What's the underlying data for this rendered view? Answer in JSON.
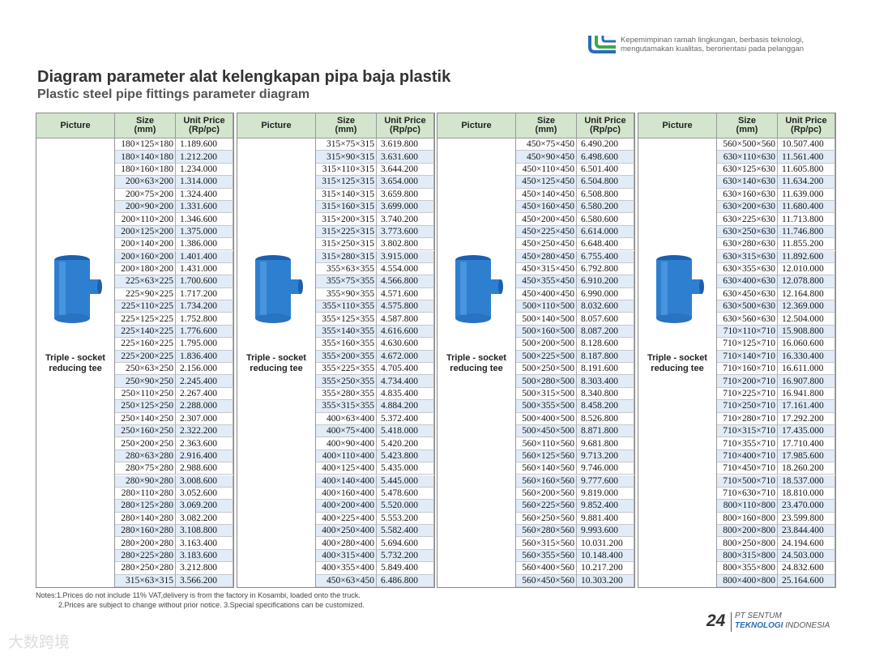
{
  "header": {
    "tagline": [
      "Kepemimpinan ramah lingkungan, berbasis teknologi,",
      "mengutamakan kualitas, berorientasi pada pelanggan"
    ],
    "title": "Diagram parameter alat kelengkapan pipa baja plastik",
    "subtitle": "Plastic steel pipe fittings parameter diagram"
  },
  "tables": [
    {
      "columns": [
        "Picture",
        "Size\n(mm)",
        "Unit Price\n(Rp/pc)"
      ],
      "picture_label": "Triple - socket\nreducing tee",
      "rows": [
        [
          "180×125×180",
          "1.189.600"
        ],
        [
          "180×140×180",
          "1.212.200"
        ],
        [
          "180×160×180",
          "1.234.000"
        ],
        [
          "200×63×200",
          "1.314.000"
        ],
        [
          "200×75×200",
          "1.324.400"
        ],
        [
          "200×90×200",
          "1.331.600"
        ],
        [
          "200×110×200",
          "1.346.600"
        ],
        [
          "200×125×200",
          "1.375.000"
        ],
        [
          "200×140×200",
          "1.386.000"
        ],
        [
          "200×160×200",
          "1.401.400"
        ],
        [
          "200×180×200",
          "1.431.000"
        ],
        [
          "225×63×225",
          "1.700.600"
        ],
        [
          "225×90×225",
          "1.717.200"
        ],
        [
          "225×110×225",
          "1.734.200"
        ],
        [
          "225×125×225",
          "1.752.800"
        ],
        [
          "225×140×225",
          "1.776.600"
        ],
        [
          "225×160×225",
          "1.795.000"
        ],
        [
          "225×200×225",
          "1.836.400"
        ],
        [
          "250×63×250",
          "2.156.000"
        ],
        [
          "250×90×250",
          "2.245.400"
        ],
        [
          "250×110×250",
          "2.267.400"
        ],
        [
          "250×125×250",
          "2.288.000"
        ],
        [
          "250×140×250",
          "2.307.000"
        ],
        [
          "250×160×250",
          "2.322.200"
        ],
        [
          "250×200×250",
          "2.363.600"
        ],
        [
          "280×63×280",
          "2.916.400"
        ],
        [
          "280×75×280",
          "2.988.600"
        ],
        [
          "280×90×280",
          "3.008.600"
        ],
        [
          "280×110×280",
          "3.052.600"
        ],
        [
          "280×125×280",
          "3.069.200"
        ],
        [
          "280×140×280",
          "3.082.200"
        ],
        [
          "280×160×280",
          "3.108.800"
        ],
        [
          "280×200×280",
          "3.163.400"
        ],
        [
          "280×225×280",
          "3.183.600"
        ],
        [
          "280×250×280",
          "3.212.800"
        ],
        [
          "315×63×315",
          "3.566.200"
        ]
      ]
    },
    {
      "columns": [
        "Picture",
        "Size\n(mm)",
        "Unit Price\n(Rp/pc)"
      ],
      "picture_label": "Triple - socket\nreducing tee",
      "rows": [
        [
          "315×75×315",
          "3.619.800"
        ],
        [
          "315×90×315",
          "3.631.600"
        ],
        [
          "315×110×315",
          "3.644.200"
        ],
        [
          "315×125×315",
          "3.654.000"
        ],
        [
          "315×140×315",
          "3.659.800"
        ],
        [
          "315×160×315",
          "3.699.000"
        ],
        [
          "315×200×315",
          "3.740.200"
        ],
        [
          "315×225×315",
          "3.773.600"
        ],
        [
          "315×250×315",
          "3.802.800"
        ],
        [
          "315×280×315",
          "3.915.000"
        ],
        [
          "355×63×355",
          "4.554.000"
        ],
        [
          "355×75×355",
          "4.566.800"
        ],
        [
          "355×90×355",
          "4.571.600"
        ],
        [
          "355×110×355",
          "4.575.800"
        ],
        [
          "355×125×355",
          "4.587.800"
        ],
        [
          "355×140×355",
          "4.616.600"
        ],
        [
          "355×160×355",
          "4.630.600"
        ],
        [
          "355×200×355",
          "4.672.000"
        ],
        [
          "355×225×355",
          "4.705.400"
        ],
        [
          "355×250×355",
          "4.734.400"
        ],
        [
          "355×280×355",
          "4.835.400"
        ],
        [
          "355×315×355",
          "4.884.200"
        ],
        [
          "400×63×400",
          "5.372.400"
        ],
        [
          "400×75×400",
          "5.418.000"
        ],
        [
          "400×90×400",
          "5.420.200"
        ],
        [
          "400×110×400",
          "5.423.800"
        ],
        [
          "400×125×400",
          "5.435.000"
        ],
        [
          "400×140×400",
          "5.445.000"
        ],
        [
          "400×160×400",
          "5.478.600"
        ],
        [
          "400×200×400",
          "5.520.000"
        ],
        [
          "400×225×400",
          "5.553.200"
        ],
        [
          "400×250×400",
          "5.582.400"
        ],
        [
          "400×280×400",
          "5.694.600"
        ],
        [
          "400×315×400",
          "5.732.200"
        ],
        [
          "400×355×400",
          "5.849.400"
        ],
        [
          "450×63×450",
          "6.486.800"
        ]
      ]
    },
    {
      "columns": [
        "Picture",
        "Size\n(mm)",
        "Unit Price\n(Rp/pc)"
      ],
      "picture_label": "Triple - socket\nreducing tee",
      "rows": [
        [
          "450×75×450",
          "6.490.200"
        ],
        [
          "450×90×450",
          "6.498.600"
        ],
        [
          "450×110×450",
          "6.501.400"
        ],
        [
          "450×125×450",
          "6.504.800"
        ],
        [
          "450×140×450",
          "6.508.800"
        ],
        [
          "450×160×450",
          "6.580.200"
        ],
        [
          "450×200×450",
          "6.580.600"
        ],
        [
          "450×225×450",
          "6.614.000"
        ],
        [
          "450×250×450",
          "6.648.400"
        ],
        [
          "450×280×450",
          "6.755.400"
        ],
        [
          "450×315×450",
          "6.792.800"
        ],
        [
          "450×355×450",
          "6.910.200"
        ],
        [
          "450×400×450",
          "6.990.000"
        ],
        [
          "500×110×500",
          "8.032.600"
        ],
        [
          "500×140×500",
          "8.057.600"
        ],
        [
          "500×160×500",
          "8.087.200"
        ],
        [
          "500×200×500",
          "8.128.600"
        ],
        [
          "500×225×500",
          "8.187.800"
        ],
        [
          "500×250×500",
          "8.191.600"
        ],
        [
          "500×280×500",
          "8.303.400"
        ],
        [
          "500×315×500",
          "8.340.800"
        ],
        [
          "500×355×500",
          "8.458.200"
        ],
        [
          "500×400×500",
          "8.526.800"
        ],
        [
          "500×450×500",
          "8.871.800"
        ],
        [
          "560×110×560",
          "9.681.800"
        ],
        [
          "560×125×560",
          "9.713.200"
        ],
        [
          "560×140×560",
          "9.746.000"
        ],
        [
          "560×160×560",
          "9.777.600"
        ],
        [
          "560×200×560",
          "9.819.000"
        ],
        [
          "560×225×560",
          "9.852.400"
        ],
        [
          "560×250×560",
          "9.881.400"
        ],
        [
          "560×280×560",
          "9.993.600"
        ],
        [
          "560×315×560",
          "10.031.200"
        ],
        [
          "560×355×560",
          "10.148.400"
        ],
        [
          "560×400×560",
          "10.217.200"
        ],
        [
          "560×450×560",
          "10.303.200"
        ]
      ]
    },
    {
      "columns": [
        "Picture",
        "Size\n(mm)",
        "Unit Price\n(Rp/pc)"
      ],
      "picture_label": "Triple - socket\nreducing tee",
      "rows": [
        [
          "560×500×560",
          "10.507.400"
        ],
        [
          "630×110×630",
          "11.561.400"
        ],
        [
          "630×125×630",
          "11.605.800"
        ],
        [
          "630×140×630",
          "11.634.200"
        ],
        [
          "630×160×630",
          "11.639.000"
        ],
        [
          "630×200×630",
          "11.680.400"
        ],
        [
          "630×225×630",
          "11.713.800"
        ],
        [
          "630×250×630",
          "11.746.800"
        ],
        [
          "630×280×630",
          "11.855.200"
        ],
        [
          "630×315×630",
          "11.892.600"
        ],
        [
          "630×355×630",
          "12.010.000"
        ],
        [
          "630×400×630",
          "12.078.800"
        ],
        [
          "630×450×630",
          "12.164.800"
        ],
        [
          "630×500×630",
          "12.369.000"
        ],
        [
          "630×560×630",
          "12.504.000"
        ],
        [
          "710×110×710",
          "15.908.800"
        ],
        [
          "710×125×710",
          "16.060.600"
        ],
        [
          "710×140×710",
          "16.330.400"
        ],
        [
          "710×160×710",
          "16.611.000"
        ],
        [
          "710×200×710",
          "16.907.800"
        ],
        [
          "710×225×710",
          "16.941.800"
        ],
        [
          "710×250×710",
          "17.161.400"
        ],
        [
          "710×280×710",
          "17.292.200"
        ],
        [
          "710×315×710",
          "17.435.000"
        ],
        [
          "710×355×710",
          "17.710.400"
        ],
        [
          "710×400×710",
          "17.985.600"
        ],
        [
          "710×450×710",
          "18.260.200"
        ],
        [
          "710×500×710",
          "18.537.000"
        ],
        [
          "710×630×710",
          "18.810.000"
        ],
        [
          "800×110×800",
          "23.470.000"
        ],
        [
          "800×160×800",
          "23.599.800"
        ],
        [
          "800×200×800",
          "23.844.400"
        ],
        [
          "800×250×800",
          "24.194.600"
        ],
        [
          "800×315×800",
          "24.503.000"
        ],
        [
          "800×355×800",
          "24.832.600"
        ],
        [
          "800×400×800",
          "25.164.600"
        ]
      ]
    }
  ],
  "notes": [
    "Notes:1.Prices do not include 11% VAT,delivery is from the factory in Kosambi, loaded onto the truck.",
    "2.Prices are subject to change without prior notice.  3.Special specifications can be customized."
  ],
  "footer": {
    "page": "24",
    "company_line1": "PT SENTUM",
    "company_bold": "TEKNOLOGI",
    "company_rest": "INDONESIA",
    "watermark": "大数跨境"
  }
}
